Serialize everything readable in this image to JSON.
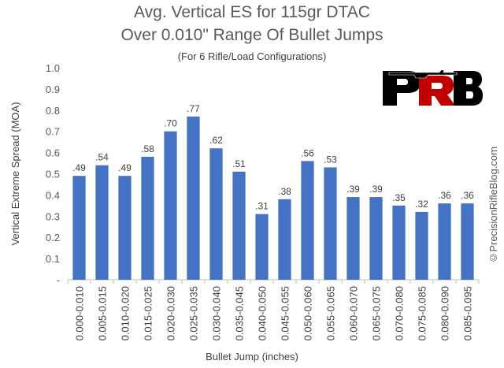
{
  "chart_data": {
    "type": "bar",
    "title": "Avg. Vertical ES for 115gr DTAC",
    "subtitle_line2": "Over 0.010\" Range Of Bullet Jumps",
    "subtitle": "(For 6 Rifle/Load Configurations)",
    "xlabel": "Bullet Jump (inches)",
    "ylabel": "Vertical Extreme Spread (MOA)",
    "ylim": [
      0,
      1.0
    ],
    "yticks": [
      "-",
      "0.1",
      "0.2",
      "0.3",
      "0.4",
      "0.5",
      "0.6",
      "0.7",
      "0.8",
      "0.9",
      "1.0"
    ],
    "grid": false,
    "categories": [
      "0.000-0.010",
      "0.005-0.015",
      "0.010-0.020",
      "0.015-0.025",
      "0.020-0.030",
      "0.025-0.035",
      "0.030-0.040",
      "0.035-0.045",
      "0.040-0.050",
      "0.045-0.055",
      "0.050-0.060",
      "0.055-0.065",
      "0.060-0.070",
      "0.065-0.075",
      "0.070-0.080",
      "0.075-0.085",
      "0.080-0.090",
      "0.085-0.095"
    ],
    "values": [
      0.49,
      0.54,
      0.49,
      0.58,
      0.7,
      0.77,
      0.62,
      0.51,
      0.31,
      0.38,
      0.56,
      0.53,
      0.39,
      0.39,
      0.35,
      0.32,
      0.36,
      0.36
    ],
    "data_labels": [
      ".49",
      ".54",
      ".49",
      ".58",
      ".70",
      ".77",
      ".62",
      ".51",
      ".31",
      ".38",
      ".56",
      ".53",
      ".39",
      ".39",
      ".35",
      ".32",
      ".36",
      ".36"
    ],
    "bar_color": "#4472C4"
  },
  "logo_text": "PRB",
  "watermark": "©PrecisionRifleBlog.com"
}
